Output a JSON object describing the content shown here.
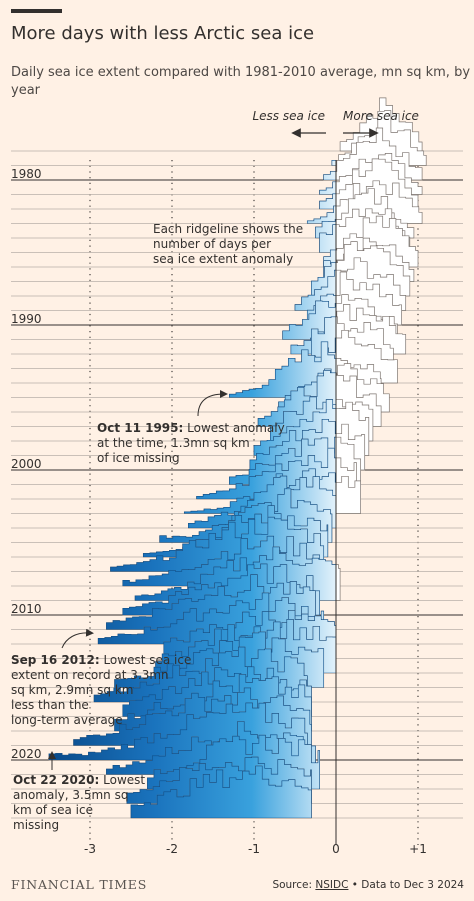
{
  "header": {
    "title": "More days with less Arctic sea ice",
    "subtitle": "Daily sea ice extent compared with 1981-2010 average, mn sq km, by year"
  },
  "direction_labels": {
    "less": "Less sea ice",
    "more": "More sea ice"
  },
  "annotations": {
    "ridgeline_note": [
      "Each ridgeline shows the",
      "number of days per",
      "sea ice extent anomaly"
    ],
    "note_1995": [
      "Oct 11 1995: Lowest anomaly",
      "at the time, 1.3mn sq km",
      "of ice missing"
    ],
    "note_1995_bold": "Oct 11 1995:",
    "note_2012": [
      "Sep 16 2012: Lowest sea ice",
      "extent on record at 3.3mn",
      "sq km, 2.9mn sq km",
      "less than the",
      "long-term average"
    ],
    "note_2012_bold": "Sep 16 2012:",
    "note_2020": [
      "Oct 22 2020: Lowest",
      "anomaly, 3.5mn sq",
      "km of sea ice",
      "missing"
    ],
    "note_2020_bold": "Oct 22 2020:"
  },
  "footer": {
    "brand": "FINANCIAL TIMES",
    "source_prefix": "Source: ",
    "source_link": "NSIDC",
    "source_suffix": " • Data to Dec 3 2024"
  },
  "colors": {
    "background": "#fff1e5",
    "text": "#33302e",
    "grid": "#a59d98",
    "fill_low": "#0f5fa6",
    "fill_mid": "#39a1dd",
    "fill_high": "#dff0fa",
    "fill_positive": "#ffffff"
  },
  "chart_data": {
    "type": "ridgeline",
    "title": "More days with less Arctic sea ice",
    "subtitle": "Daily sea ice extent compared with 1981-2010 average, mn sq km, by year",
    "xlabel": "",
    "x_ticks": [
      -3,
      -2,
      -1,
      0,
      1
    ],
    "x_tick_labels": [
      "-3",
      "-2",
      "-1",
      "0",
      "+1"
    ],
    "xlim": [
      -3.95,
      1.7
    ],
    "year_labels": [
      "1980",
      "1990",
      "2000",
      "2010",
      "2020"
    ],
    "years": [
      1978,
      1979,
      1980,
      1981,
      1982,
      1983,
      1984,
      1985,
      1986,
      1987,
      1988,
      1989,
      1990,
      1991,
      1992,
      1993,
      1994,
      1995,
      1996,
      1997,
      1998,
      1999,
      2000,
      2001,
      2002,
      2003,
      2004,
      2005,
      2006,
      2007,
      2008,
      2009,
      2010,
      2011,
      2012,
      2013,
      2014,
      2015,
      2016,
      2017,
      2018,
      2019,
      2020,
      2021,
      2022,
      2023,
      2024
    ],
    "series_shape": {
      "centers": [
        0.55,
        0.55,
        0.45,
        0.45,
        0.42,
        0.45,
        0.35,
        0.35,
        0.45,
        0.35,
        0.3,
        0.25,
        0.2,
        0.1,
        0.25,
        0.1,
        0.15,
        -0.15,
        0.05,
        -0.05,
        -0.05,
        -0.1,
        -0.15,
        -0.25,
        -0.3,
        -0.25,
        -0.45,
        -0.55,
        -0.75,
        -0.9,
        -0.85,
        -0.7,
        -0.9,
        -1.05,
        -0.95,
        -0.8,
        -0.85,
        -0.95,
        -1.15,
        -1.15,
        -1.1,
        -1.3,
        -1.15,
        -1.05,
        -0.95,
        -1.15,
        -1.05
      ],
      "spreads": [
        0.28,
        0.3,
        0.3,
        0.3,
        0.32,
        0.35,
        0.35,
        0.38,
        0.38,
        0.38,
        0.38,
        0.4,
        0.4,
        0.42,
        0.42,
        0.45,
        0.45,
        0.5,
        0.48,
        0.52,
        0.52,
        0.55,
        0.55,
        0.58,
        0.6,
        0.62,
        0.62,
        0.65,
        0.7,
        0.8,
        0.8,
        0.78,
        0.85,
        0.9,
        0.95,
        0.9,
        0.85,
        0.9,
        0.95,
        0.9,
        0.95,
        0.95,
        0.95,
        0.9,
        0.88,
        0.9,
        0.9
      ],
      "mins": [
        0.05,
        -0.05,
        -0.15,
        -0.2,
        -0.2,
        -0.35,
        -0.25,
        -0.2,
        -0.15,
        -0.15,
        -0.3,
        -0.5,
        -0.35,
        -0.65,
        -0.55,
        -0.3,
        -0.65,
        -1.3,
        -0.7,
        -0.95,
        -0.8,
        -1.0,
        -1.05,
        -1.3,
        -1.7,
        -1.85,
        -1.8,
        -2.15,
        -2.35,
        -2.75,
        -2.6,
        -2.45,
        -2.6,
        -2.8,
        -2.9,
        -2.1,
        -2.2,
        -2.7,
        -2.95,
        -2.6,
        -2.7,
        -3.2,
        -3.5,
        -2.8,
        -2.3,
        -2.55,
        -2.5
      ],
      "maxs": [
        1.05,
        1.1,
        1.05,
        1.05,
        1.0,
        1.05,
        0.95,
        0.9,
        1.0,
        0.95,
        0.9,
        0.85,
        0.8,
        0.75,
        0.85,
        0.7,
        0.75,
        0.55,
        0.65,
        0.55,
        0.45,
        0.4,
        0.35,
        0.3,
        0.25,
        0.3,
        0.0,
        -0.05,
        -0.1,
        -0.15,
        -0.15,
        0.05,
        -0.2,
        -0.25,
        -0.15,
        0.0,
        0.0,
        -0.15,
        -0.35,
        -0.3,
        -0.3,
        -0.3,
        -0.35,
        -0.25,
        -0.2,
        -0.3,
        -0.3
      ]
    },
    "notes": "Each ridgeline shows the number of days per sea ice extent anomaly; blue fill = less ice than average, white = more."
  }
}
